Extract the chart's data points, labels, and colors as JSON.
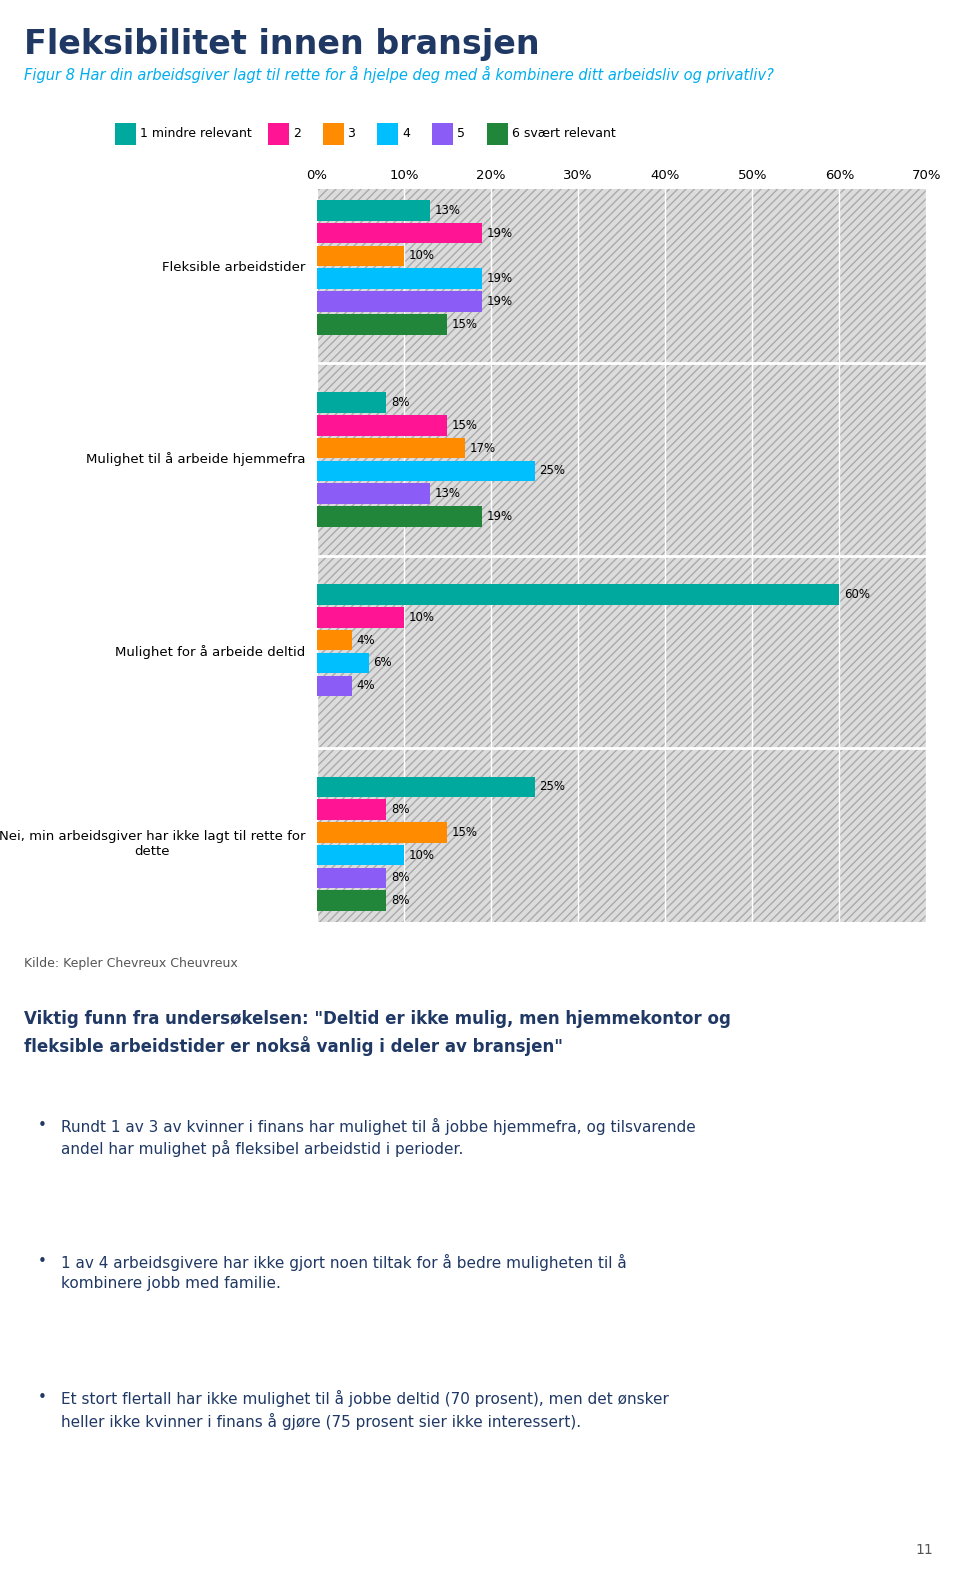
{
  "title": "Fleksibilitet innen bransjen",
  "subtitle": "Figur 8 Har din arbeidsgiver lagt til rette for å hjelpe deg med å kombinere ditt arbeidsliv og privatliv?",
  "legend_labels": [
    "1 mindre relevant",
    "2",
    "3",
    "4",
    "5",
    "6 svært relevant"
  ],
  "colors": [
    "#00A99D",
    "#FF1493",
    "#FF8C00",
    "#00BFFF",
    "#8B5CF6",
    "#22863A"
  ],
  "categories": [
    "Fleksible arbeidstider",
    "Mulighet til å arbeide hjemmefra",
    "Mulighet for å arbeide deltid",
    "Nei, min arbeidsgiver har ikke lagt til rette for\ndette"
  ],
  "values": [
    [
      13,
      19,
      10,
      19,
      19,
      15
    ],
    [
      8,
      15,
      17,
      25,
      13,
      19
    ],
    [
      60,
      10,
      4,
      6,
      4,
      0
    ],
    [
      25,
      8,
      15,
      10,
      8,
      8
    ]
  ],
  "xlim": [
    0,
    70
  ],
  "xticks": [
    0,
    10,
    20,
    30,
    40,
    50,
    60,
    70
  ],
  "xtick_labels": [
    "0%",
    "10%",
    "20%",
    "30%",
    "40%",
    "50%",
    "60%",
    "70%"
  ],
  "source_text": "Kilde: Kepler Chevreux Cheuvreux",
  "finding_title": "Viktig funn fra undersøkelsen: \"Deltid er ikke mulig, men hjemmekontor og fleksible arbeidstider er nokså vanlig i deler av bransjen\"",
  "bullets": [
    "Rundt 1 av 3 av kvinner i finans har mulighet til å jobbe hjemmefra, og tilsvarende andel har mulighet på fleksibel arbeidstid i perioder.",
    "1 av 4 arbeidsgivere har ikke gjort noen tiltak for å bedre muligheten til å kombinere jobb med familie.",
    "Et stort flertall har ikke mulighet til å jobbe deltid (70 prosent), men det ønsker heller ikke kvinner i finans å gjøre (75 prosent sier ikke interessert)."
  ],
  "page_number": "11",
  "background_color": "#FFFFFF",
  "chart_bg_color": "#DCDCDC",
  "title_color": "#1F3864",
  "subtitle_color": "#00AEEF",
  "source_color": "#555555",
  "finding_color": "#1F3864",
  "bullet_color": "#1F3864"
}
